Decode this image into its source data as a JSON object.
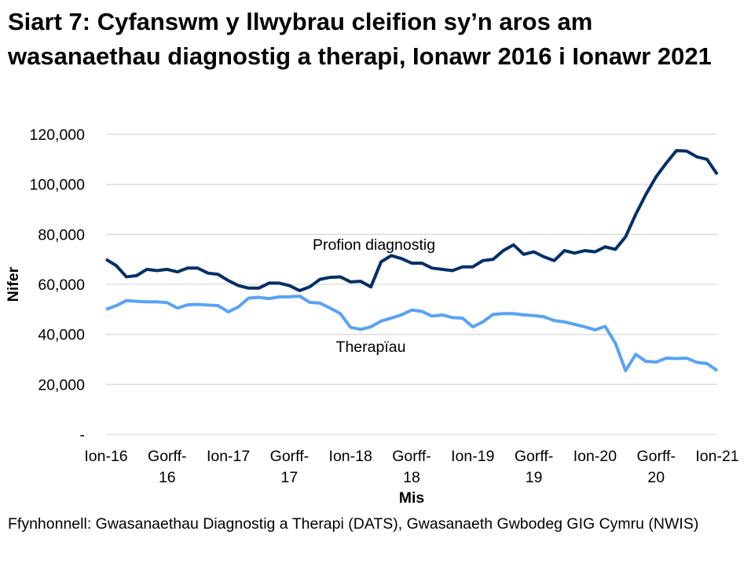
{
  "chart_data": {
    "type": "line",
    "title": "Siart 7: Cyfanswm y llwybrau cleifion sy’n aros am wasanaethau diagnostig a therapi, Ionawr 2016 i Ionawr 2021",
    "xlabel": "Mis",
    "ylabel": "Nifer",
    "ylim": [
      0,
      120000
    ],
    "yticks": [
      0,
      20000,
      40000,
      60000,
      80000,
      100000,
      120000
    ],
    "ytick_labels": [
      "-",
      "20,000",
      "40,000",
      "60,000",
      "80,000",
      "100,000",
      "120,000"
    ],
    "xtick_labels": [
      [
        "Ion-16"
      ],
      [
        "Gorff-",
        "16"
      ],
      [
        "Ion-17"
      ],
      [
        "Gorff-",
        "17"
      ],
      [
        "Ion-18"
      ],
      [
        "Gorff-",
        "18"
      ],
      [
        "Ion-19"
      ],
      [
        "Gorff-",
        "19"
      ],
      [
        "Ion-20"
      ],
      [
        "Gorff-",
        "20"
      ],
      [
        "Ion-21"
      ]
    ],
    "x_start": "2016-01",
    "x_end": "2021-01",
    "grid": "horizontal",
    "series": [
      {
        "name": "Profion diagnostig",
        "color": "#002f67",
        "values": [
          70000,
          67500,
          63000,
          63500,
          66000,
          65500,
          66000,
          65000,
          66500,
          66500,
          64500,
          64000,
          61500,
          59500,
          58500,
          58500,
          60500,
          60500,
          59500,
          57500,
          59000,
          62000,
          62800,
          63000,
          61000,
          61200,
          59000,
          69000,
          71500,
          70300,
          68500,
          68500,
          66500,
          66000,
          65500,
          67000,
          67000,
          69500,
          70000,
          73500,
          75800,
          72000,
          73000,
          71000,
          69500,
          73500,
          72500,
          73500,
          73000,
          75000,
          74000,
          79000,
          88000,
          96000,
          103000,
          108500,
          113500,
          113300,
          111000,
          110000,
          104000
        ]
      },
      {
        "name": "Therapïau",
        "color": "#58a2f6",
        "values": [
          50000,
          51500,
          53500,
          53200,
          53000,
          53000,
          52700,
          50500,
          51800,
          52000,
          51700,
          51500,
          49000,
          51000,
          54500,
          54800,
          54300,
          55000,
          55000,
          55300,
          52800,
          52500,
          50500,
          48300,
          42800,
          42000,
          43000,
          45300,
          46500,
          47800,
          49700,
          49200,
          47300,
          47800,
          46700,
          46500,
          43000,
          45000,
          48000,
          48300,
          48300,
          47800,
          47500,
          47000,
          45500,
          45000,
          44000,
          43000,
          41800,
          43200,
          36500,
          25500,
          32000,
          29200,
          28900,
          30500,
          30300,
          30500,
          28800,
          28300,
          25500
        ]
      }
    ]
  },
  "source": "Ffynhonnell: Gwasanaethau Diagnostig a Therapi (DATS), Gwasanaeth Gwbodeg GIG Cymru (NWIS)"
}
